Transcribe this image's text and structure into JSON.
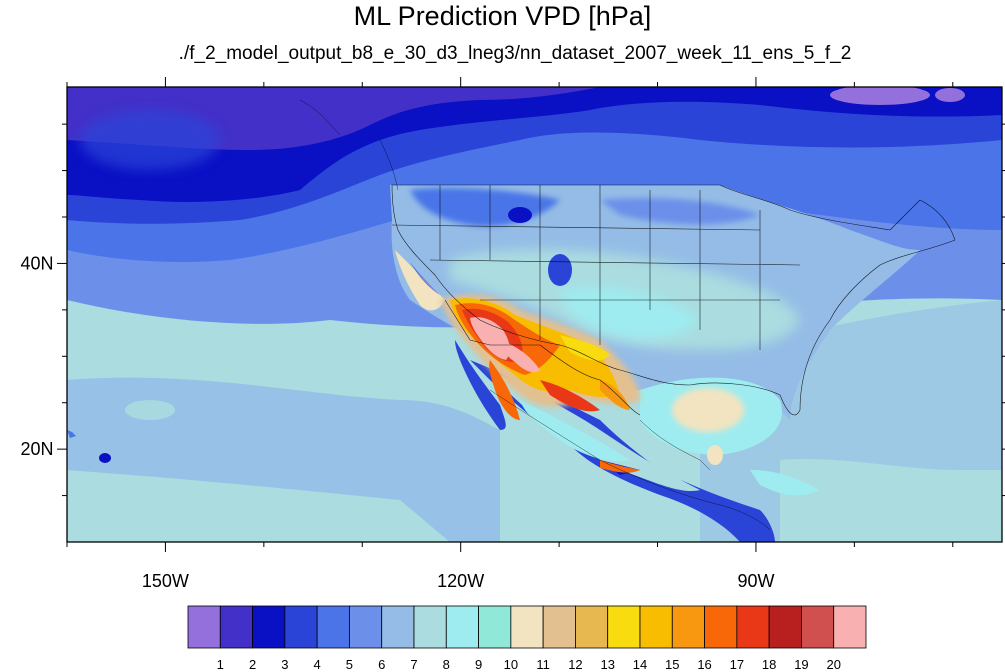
{
  "title": "ML Prediction VPD [hPa]",
  "subtitle": "./f_2_model_output_b8_e_30_d3_lneg3/nn_dataset_2007_week_11_ens_5_f_2",
  "map": {
    "lon_range": [
      -160,
      -65
    ],
    "lat_range": [
      10,
      59
    ],
    "x_ticks": [
      {
        "value": -150,
        "label": "150W"
      },
      {
        "value": -120,
        "label": "120W"
      },
      {
        "value": -90,
        "label": "90W"
      }
    ],
    "y_ticks": [
      {
        "value": 40,
        "label": "40N"
      },
      {
        "value": 20,
        "label": "20N"
      }
    ],
    "minor_x_ticks": [
      -160,
      -140,
      -130,
      -110,
      -100,
      -80,
      -70
    ],
    "minor_y_ticks": [
      15,
      25,
      30,
      35,
      45,
      50,
      55
    ]
  },
  "colorbar": {
    "labels": [
      "1",
      "2",
      "3",
      "4",
      "5",
      "6",
      "7",
      "8",
      "9",
      "10",
      "11",
      "12",
      "13",
      "14",
      "15",
      "16",
      "17",
      "18",
      "19",
      "20"
    ],
    "colors": [
      "#9370db",
      "#4330c8",
      "#0a10c4",
      "#2a44d8",
      "#4a74e8",
      "#6c90ea",
      "#94bce6",
      "#aadce0",
      "#9eecf0",
      "#90e8d8",
      "#f2e4c0",
      "#e2c090",
      "#e8b850",
      "#f8dc10",
      "#f8bc00",
      "#f89810",
      "#f86808",
      "#e83818",
      "#b82020",
      "#d05050",
      "#f8b0b0"
    ]
  },
  "legend_colors": {
    "ocean_deep": "#2a44d8",
    "ocean_mid": "#4a74e8",
    "land_low": "#aadce0",
    "desert_peak": "#f8b0b0"
  }
}
